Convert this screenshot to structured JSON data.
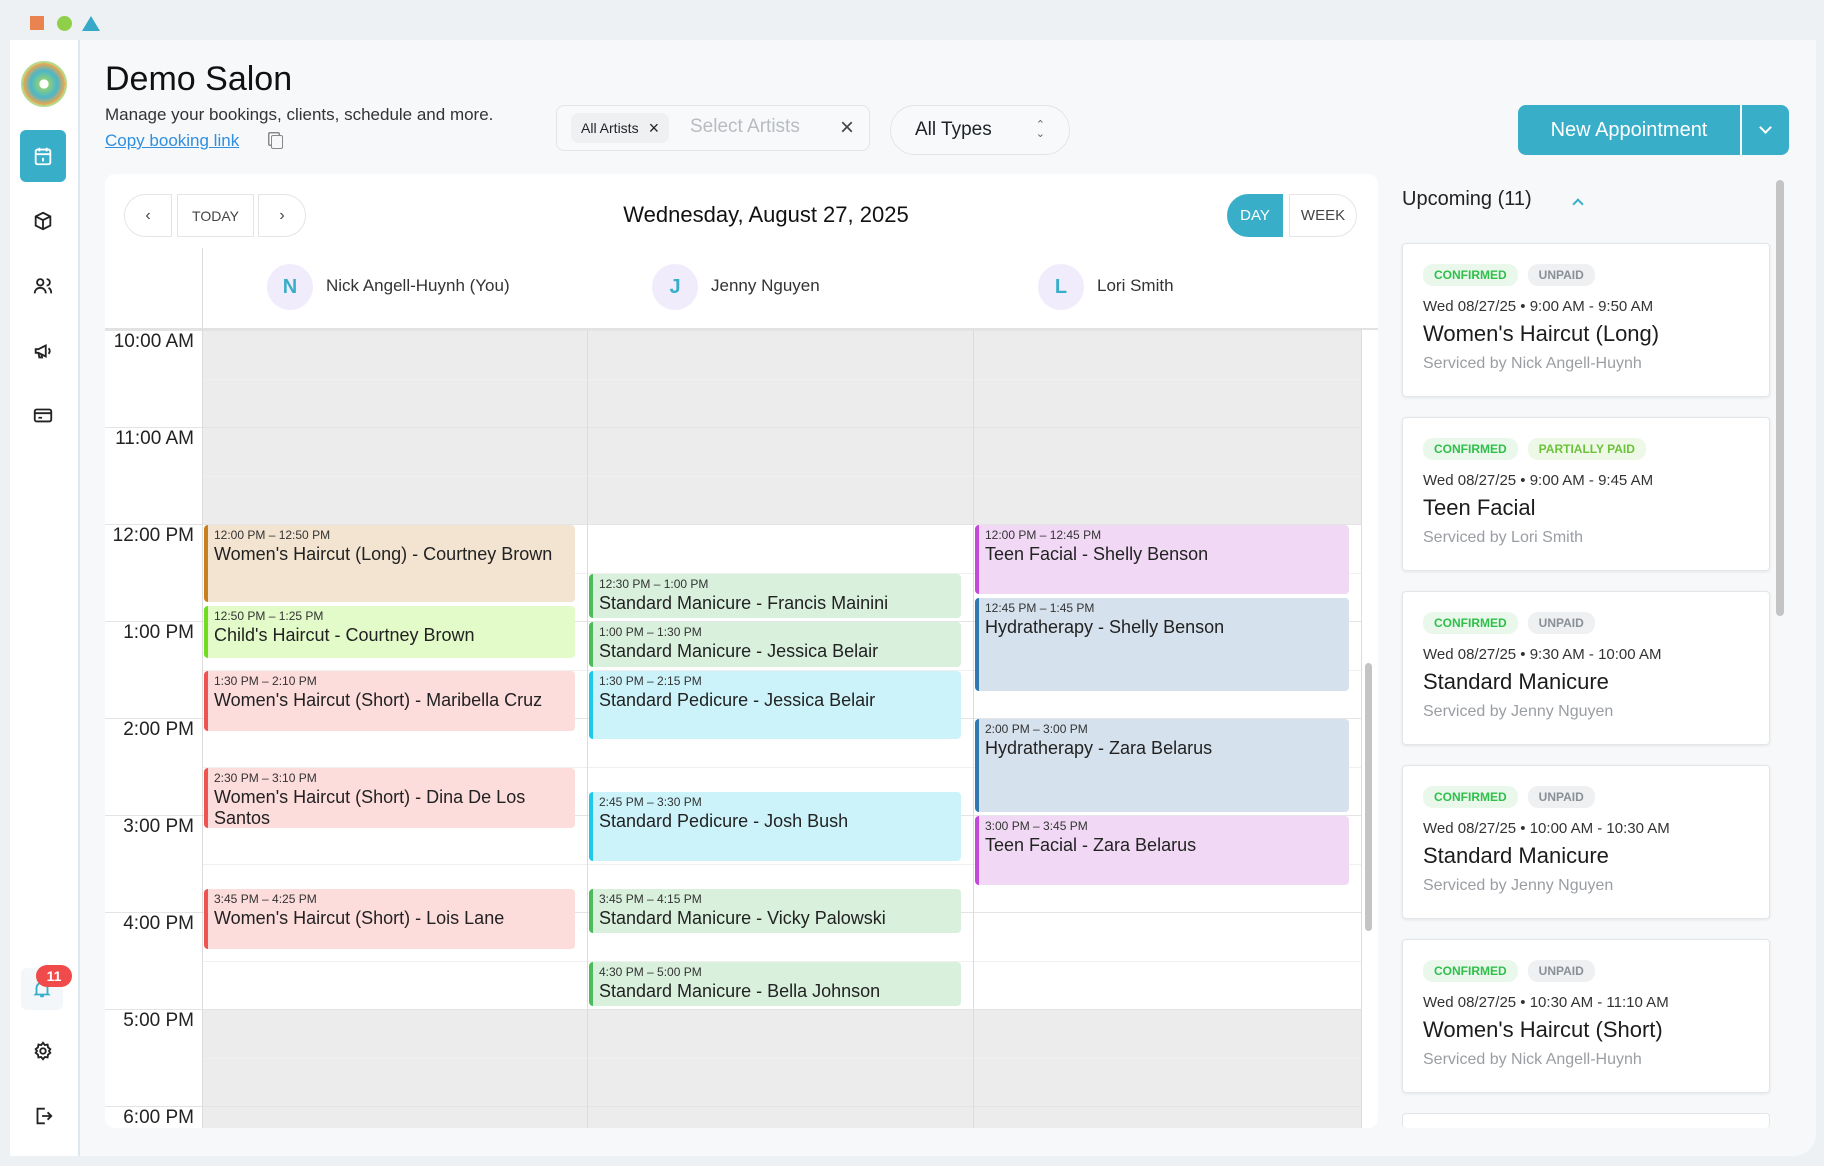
{
  "window_controls": [
    "close",
    "minimize",
    "maximize"
  ],
  "app": {
    "title": "Demo Salon",
    "subtitle": "Manage your bookings, clients, schedule and more.",
    "copy_link": "Copy booking link"
  },
  "sidebar": {
    "items": [
      {
        "icon": "calendar-icon",
        "active": true
      },
      {
        "icon": "box-icon"
      },
      {
        "icon": "users-icon"
      },
      {
        "icon": "megaphone-icon"
      },
      {
        "icon": "credit-card-icon"
      }
    ],
    "notifications_count": "11"
  },
  "filters": {
    "artist_chip": "All Artists",
    "artist_placeholder": "Select Artists",
    "type_select": "All Types"
  },
  "new_appointment": {
    "label": "New Appointment"
  },
  "calendar": {
    "today_label": "TODAY",
    "date": "Wednesday, August 27, 2025",
    "view_day": "DAY",
    "view_week": "WEEK",
    "hours": [
      "10:00 AM",
      "11:00 AM",
      "12:00 PM",
      "1:00 PM",
      "2:00 PM",
      "3:00 PM",
      "4:00 PM",
      "5:00 PM",
      "6:00 PM"
    ],
    "artists": [
      {
        "initial": "N",
        "name": "Nick Angell-Huynh (You)",
        "events": [
          {
            "time": "12:00 PM – 12:50 PM",
            "title": "Women's Haircut (Long) - Courtney Brown",
            "type": "long"
          },
          {
            "time": "12:50 PM – 1:25 PM",
            "title": "Child's Haircut - Courtney Brown",
            "type": "child"
          },
          {
            "time": "1:30 PM – 2:10 PM",
            "title": "Women's Haircut (Short) - Maribella Cruz",
            "type": "short"
          },
          {
            "time": "2:30 PM – 3:10 PM",
            "title": "Women's Haircut (Short) - Dina De Los Santos",
            "type": "short"
          },
          {
            "time": "3:45 PM – 4:25 PM",
            "title": "Women's Haircut (Short) - Lois Lane",
            "type": "short"
          }
        ]
      },
      {
        "initial": "J",
        "name": "Jenny Nguyen",
        "events": [
          {
            "time": "12:30 PM – 1:00 PM",
            "title": "Standard Manicure - Francis Mainini",
            "type": "manicure"
          },
          {
            "time": "1:00 PM – 1:30 PM",
            "title": "Standard Manicure - Jessica Belair",
            "type": "manicure"
          },
          {
            "time": "1:30 PM – 2:15 PM",
            "title": "Standard Pedicure - Jessica Belair",
            "type": "pedicure"
          },
          {
            "time": "2:45 PM – 3:30 PM",
            "title": "Standard Pedicure - Josh Bush",
            "type": "pedicure"
          },
          {
            "time": "3:45 PM – 4:15 PM",
            "title": "Standard Manicure - Vicky Palowski",
            "type": "manicure"
          },
          {
            "time": "4:30 PM – 5:00 PM",
            "title": "Standard Manicure - Bella Johnson",
            "type": "manicure"
          }
        ]
      },
      {
        "initial": "L",
        "name": "Lori Smith",
        "events": [
          {
            "time": "12:00 PM – 12:45 PM",
            "title": "Teen Facial - Shelly Benson",
            "type": "facial"
          },
          {
            "time": "12:45 PM – 1:45 PM",
            "title": "Hydratherapy - Shelly Benson",
            "type": "hydra"
          },
          {
            "time": "2:00 PM – 3:00 PM",
            "title": "Hydratherapy - Zara Belarus",
            "type": "hydra"
          },
          {
            "time": "3:00 PM – 3:45 PM",
            "title": "Teen Facial - Zara Belarus",
            "type": "facial"
          }
        ]
      }
    ],
    "type_colors": {
      "long": {
        "bg": "#f2e4d0",
        "border": "#c8801e"
      },
      "child": {
        "bg": "#e2fbc9",
        "border": "#6fdc1f"
      },
      "short": {
        "bg": "#fddcdc",
        "border": "#ef5350"
      },
      "manicure": {
        "bg": "#d8f0dc",
        "border": "#4cbb5a"
      },
      "pedicure": {
        "bg": "#cdf3fa",
        "border": "#1ec8e8"
      },
      "facial": {
        "bg": "#f1d9f5",
        "border": "#c34ad8"
      },
      "hydra": {
        "bg": "#d5e2ed",
        "border": "#2f78b0"
      }
    }
  },
  "upcoming": {
    "title": "Upcoming (11)",
    "cards": [
      {
        "status": "CONFIRMED",
        "payment": "UNPAID",
        "when": "Wed 08/27/25 • 9:00 AM - 9:50 AM",
        "service": "Women's Haircut (Long)",
        "by": "Serviced by Nick Angell-Huynh"
      },
      {
        "status": "CONFIRMED",
        "payment": "PARTIALLY PAID",
        "when": "Wed 08/27/25 • 9:00 AM - 9:45 AM",
        "service": "Teen Facial",
        "by": "Serviced by Lori Smith"
      },
      {
        "status": "CONFIRMED",
        "payment": "UNPAID",
        "when": "Wed 08/27/25 • 9:30 AM - 10:00 AM",
        "service": "Standard Manicure",
        "by": "Serviced by Jenny Nguyen"
      },
      {
        "status": "CONFIRMED",
        "payment": "UNPAID",
        "when": "Wed 08/27/25 • 10:00 AM - 10:30 AM",
        "service": "Standard Manicure",
        "by": "Serviced by Jenny Nguyen"
      },
      {
        "status": "CONFIRMED",
        "payment": "UNPAID",
        "when": "Wed 08/27/25 • 10:30 AM - 11:10 AM",
        "service": "Women's Haircut (Short)",
        "by": "Serviced by Nick Angell-Huynh"
      }
    ]
  },
  "colors": {
    "accent": "#38aec9",
    "confirmed": "#2fbf4a",
    "unpaid": "#8a9097",
    "partially_paid": "#6cc23a",
    "badge_red": "#f04a4a"
  }
}
